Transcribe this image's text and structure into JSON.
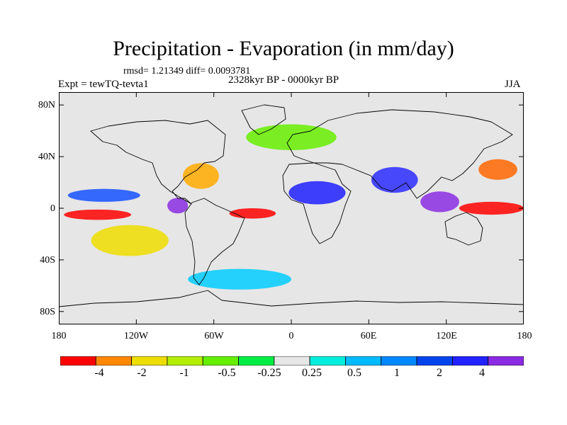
{
  "header": {
    "title": "Precipitation - Evaporation (in mm/day)",
    "stats": "rmsd= 1.21349 diff= 0.0093781",
    "experiment": "Expt = tewTQ-tevta1",
    "period": "2328kyr BP - 0000kyr BP",
    "season": "JJA"
  },
  "map": {
    "projection": "cylindrical-equidistant",
    "land_color": "#e6e6e6",
    "lat_ticks": [
      "80N",
      "40N",
      "0",
      "40S",
      "80S"
    ],
    "lat_values": [
      80,
      40,
      0,
      -40,
      -80
    ],
    "lon_ticks": [
      "180",
      "120W",
      "60W",
      "0",
      "60E",
      "120E",
      "180"
    ],
    "lon_values": [
      -180,
      -120,
      -60,
      0,
      60,
      120,
      180
    ],
    "anomaly_regions": [
      {
        "lon": -150,
        "lat": -5,
        "rx": 26,
        "ry": 4,
        "color": "#ff0000"
      },
      {
        "lon": -125,
        "lat": -25,
        "rx": 30,
        "ry": 12,
        "color": "#eedd00"
      },
      {
        "lon": -145,
        "lat": 10,
        "rx": 28,
        "ry": 5,
        "color": "#1450ff"
      },
      {
        "lon": -88,
        "lat": 2,
        "rx": 8,
        "ry": 6,
        "color": "#8a2be2"
      },
      {
        "lon": -70,
        "lat": 25,
        "rx": 14,
        "ry": 10,
        "color": "#ffaa00"
      },
      {
        "lon": -30,
        "lat": -4,
        "rx": 18,
        "ry": 4,
        "color": "#ff0000"
      },
      {
        "lon": 20,
        "lat": 12,
        "rx": 22,
        "ry": 9,
        "color": "#1e1eff"
      },
      {
        "lon": 80,
        "lat": 22,
        "rx": 18,
        "ry": 10,
        "color": "#2a2aff"
      },
      {
        "lon": 155,
        "lat": 0,
        "rx": 25,
        "ry": 5,
        "color": "#ff0000"
      },
      {
        "lon": 160,
        "lat": 30,
        "rx": 15,
        "ry": 8,
        "color": "#ff6600"
      },
      {
        "lon": 115,
        "lat": 5,
        "rx": 15,
        "ry": 8,
        "color": "#8a2be2"
      },
      {
        "lon": 0,
        "lat": 55,
        "rx": 35,
        "ry": 10,
        "color": "#66ee00"
      },
      {
        "lon": -40,
        "lat": -55,
        "rx": 40,
        "ry": 8,
        "color": "#00ccff"
      }
    ]
  },
  "colorbar": {
    "colors": [
      "#ff0000",
      "#ff8800",
      "#eedd00",
      "#b4ee00",
      "#66ee00",
      "#00ee44",
      "#e6e6e6",
      "#00eedd",
      "#00bbff",
      "#0088ff",
      "#0044ee",
      "#2222ff",
      "#8a2be2"
    ],
    "labels": [
      "-4",
      "-2",
      "-1",
      "-0.5",
      "-0.25",
      "0.25",
      "0.5",
      "1",
      "2",
      "4"
    ],
    "label_units": "mm/day"
  }
}
